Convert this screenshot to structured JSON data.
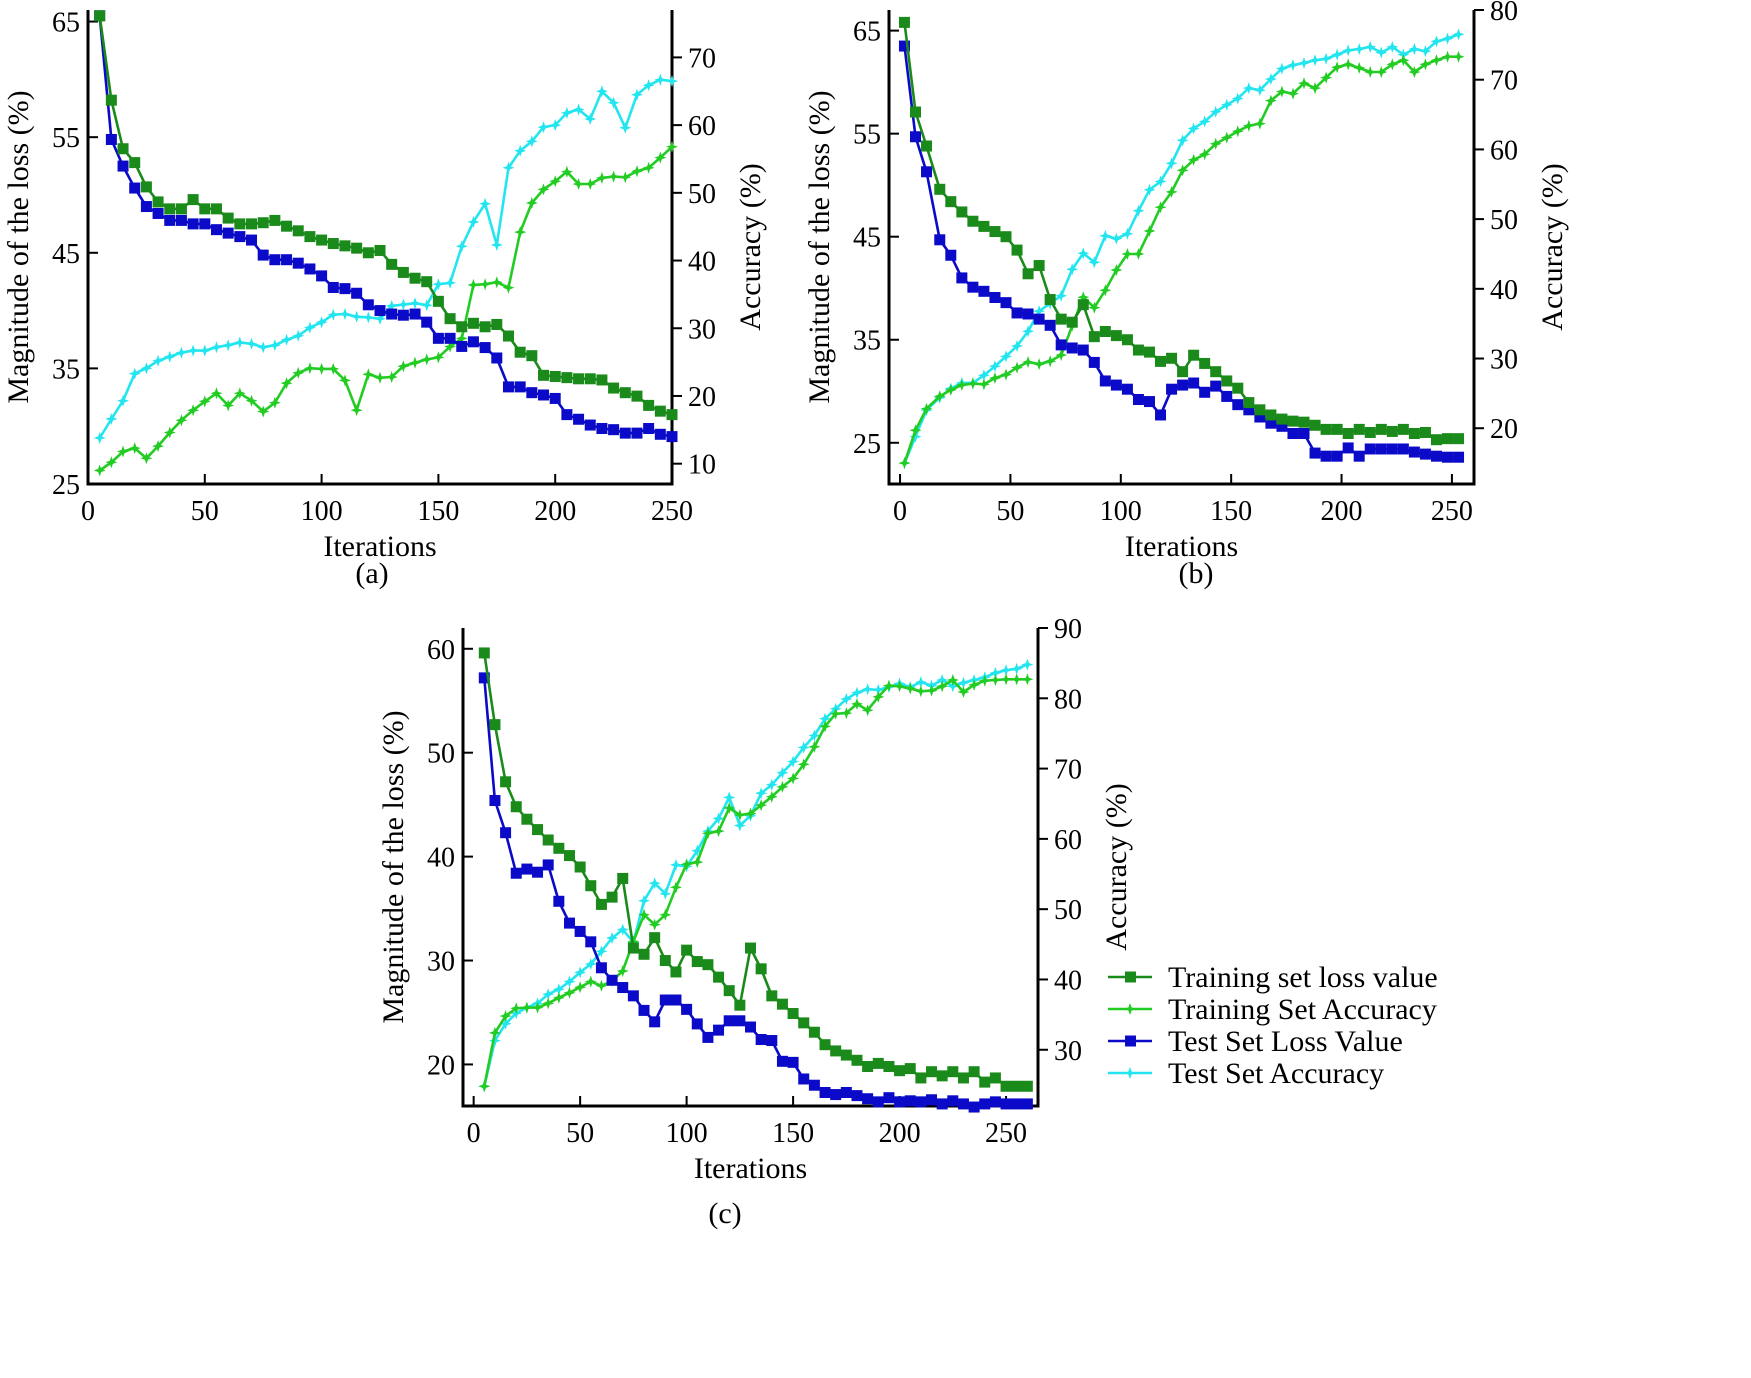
{
  "legend": [
    {
      "label": "Training set loss value",
      "color": "#1a8a1a",
      "marker": "square"
    },
    {
      "label": "Training Set Accuracy",
      "color": "#22cc22",
      "marker": "star"
    },
    {
      "label": "Test Set Loss Value",
      "color": "#0a0ac8",
      "marker": "square"
    },
    {
      "label": "Test Set Accuracy",
      "color": "#22e5f0",
      "marker": "star"
    }
  ],
  "chart_data": [
    {
      "type": "line",
      "panel_label": "(a)",
      "xlabel": "Iterations",
      "ylabel": "Magnitude of the loss (%)",
      "y2label": "Accuracy (%)",
      "xlim": [
        0,
        250
      ],
      "xticks": [
        "0",
        "50",
        "100",
        "150",
        "200",
        "250"
      ],
      "ylim": [
        25,
        66
      ],
      "yticks": [
        "25",
        "35",
        "45",
        "55",
        "65"
      ],
      "y2lim": [
        7,
        77
      ],
      "y2ticks": [
        "10",
        "20",
        "30",
        "40",
        "50",
        "60",
        "70"
      ],
      "x": [
        5,
        10,
        15,
        20,
        25,
        30,
        35,
        40,
        45,
        50,
        55,
        60,
        65,
        70,
        75,
        80,
        85,
        90,
        95,
        100,
        105,
        110,
        115,
        120,
        125,
        130,
        135,
        140,
        145,
        150,
        155,
        160,
        165,
        170,
        175,
        180,
        185,
        190,
        195,
        200,
        205,
        210,
        215,
        220,
        225,
        230,
        235,
        240,
        245,
        250
      ],
      "series": [
        {
          "name": "Training set loss value",
          "axis": "left",
          "values": [
            65.5,
            58.2,
            54,
            52.8,
            50.7,
            49.4,
            48.8,
            48.8,
            49.6,
            48.8,
            48.8,
            48,
            47.5,
            47.5,
            47.6,
            47.8,
            47.3,
            46.9,
            46.4,
            46.1,
            45.8,
            45.6,
            45.4,
            45,
            45.2,
            44,
            43.3,
            42.8,
            42.5,
            40.8,
            39.3,
            38.6,
            38.9,
            38.6,
            38.8,
            37.8,
            36.4,
            36.1,
            34.4,
            34.3,
            34.2,
            34.1,
            34.1,
            34,
            33.3,
            32.9,
            32.6,
            31.8,
            31.3,
            31
          ],
          "marker": "square"
        },
        {
          "name": "Training Set Accuracy",
          "axis": "right",
          "values": [
            9,
            10.2,
            11.8,
            12.3,
            10.8,
            12.6,
            14.6,
            16.4,
            17.9,
            19.2,
            20.4,
            18.6,
            20.4,
            19.3,
            17.7,
            19,
            21.9,
            23.4,
            24.1,
            24,
            24,
            22.3,
            17.9,
            23.2,
            22.7,
            22.8,
            24.4,
            24.9,
            25.4,
            25.7,
            27.3,
            28.5,
            36.4,
            36.5,
            36.8,
            36,
            44.2,
            48.5,
            50.5,
            51.7,
            53.1,
            51.3,
            51.3,
            52.2,
            52.4,
            52.3,
            53.2,
            53.7,
            55.2,
            56.8
          ],
          "marker": "star"
        },
        {
          "name": "Test Set Loss Value",
          "axis": "left",
          "values": [
            65.5,
            54.8,
            52.5,
            50.6,
            49,
            48.4,
            47.8,
            47.8,
            47.5,
            47.5,
            47,
            46.7,
            46.4,
            46.1,
            44.8,
            44.4,
            44.4,
            44.1,
            43.6,
            43,
            42,
            41.9,
            41.5,
            40.5,
            40,
            39.7,
            39.6,
            39.7,
            39,
            37.6,
            37.6,
            36.9,
            37.3,
            36.8,
            35.9,
            33.4,
            33.4,
            32.9,
            32.7,
            32.4,
            31,
            30.6,
            30.1,
            29.8,
            29.7,
            29.4,
            29.4,
            29.8,
            29.3,
            29.1
          ],
          "marker": "square"
        },
        {
          "name": "Test Set Accuracy",
          "axis": "right",
          "values": [
            13.8,
            16.6,
            19.3,
            23.3,
            24.1,
            25.2,
            25.8,
            26.4,
            26.7,
            26.7,
            27.2,
            27.5,
            27.9,
            27.7,
            27.2,
            27.5,
            28.3,
            28.9,
            30.1,
            30.9,
            32,
            32.1,
            31.7,
            31.6,
            31.4,
            33.3,
            33.5,
            33.7,
            33.4,
            36.5,
            36.7,
            42.1,
            45.7,
            48.4,
            42.3,
            53.7,
            56.2,
            57.6,
            59.7,
            60,
            61.8,
            62.3,
            60.9,
            65,
            63.3,
            59.6,
            64.5,
            65.9,
            66.7,
            66.5
          ],
          "marker": "star"
        }
      ]
    },
    {
      "type": "line",
      "panel_label": "(b)",
      "xlabel": "Iterations",
      "ylabel": "Magnitude of the loss (%)",
      "y2label": "Accuracy (%)",
      "xlim": [
        -5,
        260
      ],
      "xticks": [
        "0",
        "50",
        "100",
        "150",
        "200",
        "250"
      ],
      "ylim": [
        21,
        67
      ],
      "yticks": [
        "25",
        "35",
        "45",
        "55",
        "65"
      ],
      "y2lim": [
        12,
        80
      ],
      "y2ticks": [
        "20",
        "30",
        "40",
        "50",
        "60",
        "70",
        "80"
      ],
      "x": [
        2,
        7,
        12,
        18,
        23,
        28,
        33,
        38,
        43,
        48,
        53,
        58,
        63,
        68,
        73,
        78,
        83,
        88,
        93,
        98,
        103,
        108,
        113,
        118,
        123,
        128,
        133,
        138,
        143,
        148,
        153,
        158,
        163,
        168,
        173,
        178,
        183,
        188,
        193,
        198,
        203,
        208,
        213,
        218,
        223,
        228,
        233,
        238,
        243,
        248,
        253
      ],
      "series": [
        {
          "name": "Training set loss value",
          "axis": "left",
          "values": [
            65.8,
            57.1,
            53.8,
            49.6,
            48.4,
            47.4,
            46.5,
            46,
            45.5,
            45,
            43.7,
            41.4,
            42.2,
            38.9,
            37,
            36.7,
            38.4,
            35.3,
            35.8,
            35.4,
            35,
            34,
            33.8,
            32.9,
            33.2,
            31.9,
            33.5,
            32.7,
            31.9,
            31,
            30.3,
            28.9,
            28.2,
            27.7,
            27.3,
            27.1,
            27,
            26.7,
            26.3,
            26.3,
            25.9,
            26.3,
            26,
            26.3,
            26.1,
            26.3,
            25.9,
            26,
            25.3,
            25.4,
            25.4
          ],
          "marker": "square"
        },
        {
          "name": "Training Set Accuracy",
          "axis": "right",
          "values": [
            15,
            19.7,
            22.8,
            24.6,
            25.5,
            26.2,
            26.4,
            26.3,
            27.2,
            27.7,
            28.7,
            29.5,
            29.2,
            29.6,
            30.5,
            34.7,
            38.8,
            37.3,
            39.8,
            42.7,
            45,
            45,
            48.3,
            51.7,
            53.9,
            57,
            58.5,
            59.3,
            60.8,
            61.7,
            62.6,
            63.4,
            63.7,
            67,
            68.3,
            68,
            69.5,
            68.8,
            70.3,
            71.8,
            72.2,
            71.7,
            71.1,
            71.1,
            72.2,
            72.8,
            71.1,
            72.2,
            72.8,
            73.3,
            73.3
          ],
          "marker": "star"
        },
        {
          "name": "Test Set Loss Value",
          "axis": "left",
          "values": [
            63.5,
            54.7,
            51.3,
            44.7,
            43.2,
            41,
            40.1,
            39.7,
            39.1,
            38.6,
            37.6,
            37.5,
            37,
            36.4,
            34.5,
            34.2,
            34,
            32.8,
            31,
            30.6,
            30.2,
            29.2,
            29,
            27.7,
            30.2,
            30.6,
            30.8,
            29.9,
            30.5,
            29.5,
            28.7,
            28.2,
            27.5,
            26.9,
            26.6,
            25.9,
            25.9,
            24,
            23.7,
            23.7,
            24.5,
            23.7,
            24.4,
            24.4,
            24.4,
            24.4,
            24.1,
            23.9,
            23.7,
            23.6,
            23.6
          ],
          "marker": "square"
        },
        {
          "name": "Test Set Accuracy",
          "axis": "right",
          "values": [
            15,
            18.8,
            22.6,
            24.4,
            25.7,
            26.5,
            26.5,
            27.6,
            28.9,
            30.3,
            31.8,
            33.9,
            36.8,
            37.9,
            39,
            42.8,
            45.1,
            43.8,
            47.6,
            47.2,
            47.9,
            51.2,
            54.2,
            55.4,
            58,
            61.3,
            63,
            64,
            65.4,
            66.4,
            67.3,
            68.8,
            68.5,
            70.1,
            71.6,
            72.1,
            72.4,
            72.8,
            73,
            73.6,
            74.2,
            74.4,
            74.7,
            73.9,
            74.7,
            73.6,
            74.4,
            74.1,
            75.5,
            75.9,
            76.5
          ],
          "marker": "star"
        }
      ]
    },
    {
      "type": "line",
      "panel_label": "(c)",
      "xlabel": "Iterations",
      "ylabel": "Magnitude of the loss (%)",
      "y2label": "Accuracy (%)",
      "xlim": [
        -5,
        265
      ],
      "xticks": [
        "0",
        "50",
        "100",
        "150",
        "200",
        "250"
      ],
      "ylim": [
        16,
        62
      ],
      "yticks": [
        "20",
        "30",
        "40",
        "50",
        "60"
      ],
      "y2lim": [
        22,
        90
      ],
      "y2ticks": [
        "30",
        "40",
        "50",
        "60",
        "70",
        "80",
        "90"
      ],
      "x": [
        5,
        10,
        15,
        20,
        25,
        30,
        35,
        40,
        45,
        50,
        55,
        60,
        65,
        70,
        75,
        80,
        85,
        90,
        95,
        100,
        105,
        110,
        115,
        120,
        125,
        130,
        135,
        140,
        145,
        150,
        155,
        160,
        165,
        170,
        175,
        180,
        185,
        190,
        195,
        200,
        205,
        210,
        215,
        220,
        225,
        230,
        235,
        240,
        245,
        250,
        255,
        260
      ],
      "series": [
        {
          "name": "Training set loss value",
          "axis": "left",
          "values": [
            59.6,
            52.7,
            47.2,
            44.8,
            43.6,
            42.6,
            41.6,
            40.8,
            40.1,
            39,
            37.2,
            35.4,
            36.1,
            37.9,
            31.2,
            30.6,
            32.2,
            30,
            28.9,
            31,
            29.9,
            29.6,
            28.4,
            27.1,
            25.7,
            31.2,
            29.2,
            26.6,
            25.8,
            24.9,
            24,
            23.1,
            21.9,
            21.3,
            20.9,
            20.4,
            19.8,
            20.1,
            19.8,
            19.4,
            19.6,
            18.7,
            19.3,
            18.9,
            19.3,
            18.7,
            19.3,
            18.3,
            18.7,
            17.9,
            17.9,
            17.9
          ],
          "marker": "square"
        },
        {
          "name": "Training Set Accuracy",
          "axis": "right",
          "values": [
            24.8,
            32.4,
            34.8,
            35.9,
            36,
            36,
            36.6,
            37.4,
            38.1,
            38.9,
            39.7,
            39.1,
            39.8,
            41.2,
            45.4,
            49.2,
            47.8,
            49.2,
            53.1,
            56.4,
            56.7,
            60.8,
            61.1,
            64.4,
            63.4,
            63.6,
            64.8,
            66,
            67.4,
            68.6,
            70.6,
            73.1,
            76,
            77.8,
            77.9,
            79.2,
            78.3,
            80.2,
            81.8,
            81.7,
            81.4,
            81,
            81.1,
            81.7,
            82.6,
            80.9,
            81.9,
            82.5,
            82.6,
            82.7,
            82.7,
            82.7
          ],
          "marker": "star"
        },
        {
          "name": "Test Set Loss Value",
          "axis": "left",
          "values": [
            57.2,
            45.4,
            42.3,
            38.4,
            38.8,
            38.5,
            39.2,
            35.7,
            33.6,
            32.8,
            31.8,
            29.3,
            28.1,
            27.4,
            26.6,
            25.2,
            24.1,
            26.2,
            26.2,
            25.3,
            23.9,
            22.6,
            23.3,
            24.2,
            24.2,
            23.6,
            22.4,
            22.3,
            20.3,
            20.2,
            18.6,
            18,
            17.3,
            17.1,
            17.3,
            17,
            16.7,
            16.4,
            16.8,
            16.4,
            16.5,
            16.4,
            16.6,
            16.2,
            16.5,
            16.2,
            15.9,
            16.2,
            16.4,
            16.2,
            16.2,
            16.2
          ],
          "marker": "square"
        },
        {
          "name": "Test Set Accuracy",
          "axis": "right",
          "values": [
            24.8,
            31.3,
            33.7,
            35.2,
            36,
            36.6,
            37.9,
            38.6,
            39.7,
            41,
            42.2,
            44,
            45.9,
            47.1,
            45.3,
            51.2,
            53.7,
            52.2,
            56.3,
            56.1,
            58.3,
            61.1,
            62.9,
            65.9,
            61.9,
            63.3,
            66.5,
            67.7,
            69.4,
            71,
            73,
            74.7,
            77.1,
            78.5,
            79.9,
            80.8,
            81.3,
            81.2,
            81.6,
            82.1,
            81.6,
            82.3,
            81.8,
            82.6,
            81.7,
            82.2,
            82.6,
            83,
            83.6,
            84,
            84.2,
            84.8
          ],
          "marker": "star"
        }
      ]
    }
  ]
}
